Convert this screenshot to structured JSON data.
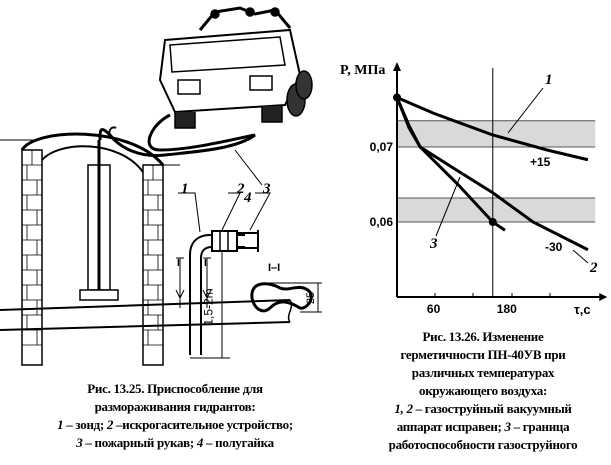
{
  "fig_left": {
    "labels": {
      "l1": "1",
      "l2": "2",
      "l3": "3",
      "l4": "4",
      "section": "I–I",
      "section_mark": "I",
      "height": "1,5-2m",
      "dim": "25"
    },
    "caption": {
      "line1": "Рис. 13.25. Приспособление для",
      "line2": "размораживания гидрантов:",
      "line3_n1": "1",
      "line3_t1": " – зонд; ",
      "line3_n2": "2",
      "line3_t2": " –искрогасительное устройство;",
      "line4_n1": "3",
      "line4_t1": " – пожарный рукав; ",
      "line4_n2": "4",
      "line4_t2": " – полугайка"
    }
  },
  "fig_right": {
    "caption": {
      "line1": "Рис. 13.26. Изменение",
      "line2": "герметичности ПН-40УВ при",
      "line3": "различных температурах",
      "line4": "окружающего  воздуха:",
      "line5_n": "1, 2",
      "line5_t": " – газоструйный вакуумный",
      "line6_t1": "аппарат исправен; ",
      "line6_n": "3",
      "line6_t2": " – граница",
      "line7": "работоспособности газоструйного"
    }
  },
  "chart_data": {
    "type": "line",
    "xlabel": "τ,c",
    "ylabel": "P, МПа",
    "x_ticks": [
      60,
      180
    ],
    "y_ticks": [
      {
        "value": 0.06,
        "label": "0,06"
      },
      {
        "value": 0.07,
        "label": "0,07"
      }
    ],
    "xlim": [
      0,
      325
    ],
    "ylim": [
      0.05,
      0.081
    ],
    "vertical_line_x": 157,
    "bands": [
      {
        "from": 0.07,
        "to": 0.0735
      },
      {
        "from": 0.06,
        "to": 0.0632
      }
    ],
    "series": [
      {
        "name": "1",
        "annotation": "+15",
        "x": [
          0,
          60,
          157,
          246,
          313
        ],
        "y": [
          0.0766,
          0.0745,
          0.0716,
          0.0696,
          0.0683
        ]
      },
      {
        "name": "2",
        "annotation": "-30",
        "x": [
          0,
          20,
          38,
          100,
          157,
          223,
          313
        ],
        "y": [
          0.0766,
          0.0728,
          0.07,
          0.0668,
          0.0639,
          0.06,
          0.0563
        ]
      },
      {
        "name": "3",
        "x": [
          0,
          20,
          38,
          100,
          157,
          177
        ],
        "y": [
          0.0766,
          0.0725,
          0.07,
          0.065,
          0.06,
          0.0589
        ]
      }
    ],
    "points": [
      {
        "x": 0,
        "y": 0.0766
      },
      {
        "x": 157,
        "y": 0.06
      }
    ]
  }
}
